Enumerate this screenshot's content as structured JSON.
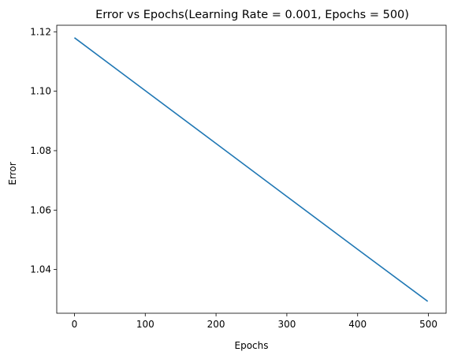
{
  "chart_data": {
    "type": "line",
    "title": "Error vs Epochs(Learning Rate = 0.001, Epochs = 500)",
    "xlabel": "Epochs",
    "ylabel": "Error",
    "xlim": [
      -25,
      525
    ],
    "ylim": [
      1.0253,
      1.1222
    ],
    "x_ticks": [
      0,
      100,
      200,
      300,
      400,
      500
    ],
    "y_ticks": [
      1.04,
      1.06,
      1.08,
      1.1,
      1.12
    ],
    "x_tick_labels": [
      "0",
      "100",
      "200",
      "300",
      "400",
      "500"
    ],
    "y_tick_labels": [
      "1.04",
      "1.06",
      "1.08",
      "1.10",
      "1.12"
    ],
    "grid": false,
    "series": [
      {
        "color": "#1f77b4",
        "x": [
          0,
          100,
          200,
          300,
          400,
          499
        ],
        "y": [
          1.118,
          1.1002,
          1.0824,
          1.0646,
          1.0468,
          1.0293
        ]
      }
    ]
  }
}
